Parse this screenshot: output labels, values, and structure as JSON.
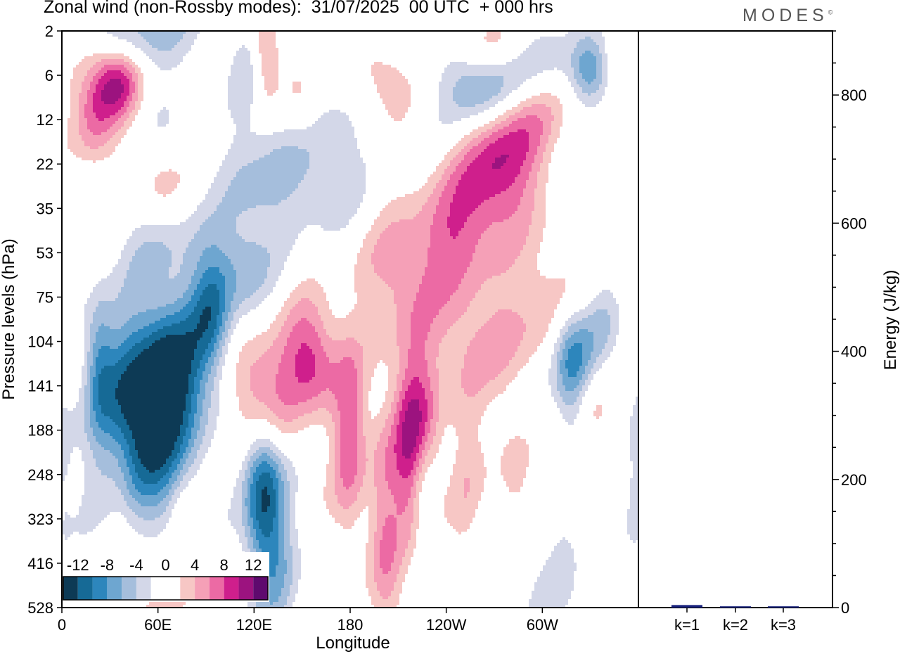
{
  "title": "Zonal wind (non-Rossby modes):  31/07/2025  00 UTC  + 000 hrs",
  "brand": {
    "name": "MODES",
    "mark": "©"
  },
  "colors": {
    "neg": [
      "#0d3a55",
      "#166a96",
      "#2d86bc",
      "#6ea6d0",
      "#a5bedc",
      "#d3d7e8"
    ],
    "pos": [
      "#f7c7c5",
      "#f5a0b7",
      "#ec6aa4",
      "#cf1f8c",
      "#9c137f",
      "#5f0a6e"
    ],
    "zero": "#ffffff",
    "energy_bar": "#1a237e"
  },
  "chart_data": [
    {
      "type": "heatmap",
      "title": "Zonal wind (non-Rossby modes)",
      "xlabel": "Longitude",
      "ylabel": "Pressure levels (hPa)",
      "x_ticks": [
        "0",
        "60E",
        "120E",
        "180",
        "120W",
        "60W"
      ],
      "x_tick_values": [
        0,
        60,
        120,
        180,
        240,
        300
      ],
      "xlim": [
        0,
        360
      ],
      "y_levels": [
        "2",
        "6",
        "12",
        "22",
        "35",
        "53",
        "75",
        "104",
        "141",
        "188",
        "248",
        "323",
        "416",
        "528"
      ],
      "colorbar": {
        "labels": [
          "-12",
          "-8",
          "-4",
          "0",
          "4",
          "8",
          "12"
        ],
        "levels": [
          -14,
          -12,
          -10,
          -8,
          -6,
          -4,
          -2,
          2,
          4,
          6,
          8,
          10,
          12,
          14
        ]
      },
      "features": [
        {
          "lon": 50,
          "level": 8.7,
          "value": -15,
          "width": 20,
          "depth": 1.6
        },
        {
          "lon": 72,
          "level": 7.6,
          "value": -8,
          "width": 14,
          "depth": 1.2
        },
        {
          "lon": 93,
          "level": 6.4,
          "value": -8,
          "width": 9,
          "depth": 1.0
        },
        {
          "lon": 110,
          "level": 5.4,
          "value": -5,
          "width": 14,
          "depth": 0.8
        },
        {
          "lon": 23,
          "level": 7.4,
          "value": -5,
          "width": 6,
          "depth": 1.0
        },
        {
          "lon": 0,
          "level": 9.8,
          "value": -3,
          "width": 5,
          "depth": 1.2
        },
        {
          "lon": 126,
          "level": 10.2,
          "value": -13,
          "width": 9,
          "depth": 1.6
        },
        {
          "lon": 137,
          "level": 12.3,
          "value": -3,
          "width": 9,
          "depth": 1.4
        },
        {
          "lon": 320,
          "level": 7.4,
          "value": -11,
          "width": 10,
          "depth": 1.0
        },
        {
          "lon": 338,
          "level": 6.4,
          "value": -4,
          "width": 8,
          "depth": 0.8
        },
        {
          "lon": 225,
          "level": 10.3,
          "value": -6,
          "width": 6,
          "depth": 1.0
        },
        {
          "lon": 160,
          "level": 2.9,
          "value": -5,
          "width": 20,
          "depth": 1.1
        },
        {
          "lon": 120,
          "level": 3.5,
          "value": -4,
          "width": 16,
          "depth": 1.0
        },
        {
          "lon": 265,
          "level": 1.3,
          "value": -10,
          "width": 18,
          "depth": 0.8
        },
        {
          "lon": 300,
          "level": 0.8,
          "value": -7,
          "width": 16,
          "depth": 0.7
        },
        {
          "lon": 330,
          "level": 0.9,
          "value": -7,
          "width": 8,
          "depth": 0.5
        },
        {
          "lon": 48,
          "level": 1.6,
          "value": -4,
          "width": 14,
          "depth": 0.7
        },
        {
          "lon": 50,
          "level": 0.0,
          "value": -5,
          "width": 26,
          "depth": 0.6
        },
        {
          "lon": 120,
          "level": 1.0,
          "value": -3,
          "width": 10,
          "depth": 0.8
        },
        {
          "lon": 300,
          "level": 13.0,
          "value": -2,
          "width": 10,
          "depth": 1.5
        },
        {
          "lon": 315,
          "level": 12.3,
          "value": -2,
          "width": 6,
          "depth": 1.0
        },
        {
          "lon": 63,
          "level": 4.8,
          "value": -3,
          "width": 18,
          "depth": 0.7
        },
        {
          "lon": 125,
          "level": 8.3,
          "value": 11,
          "width": 12,
          "depth": 1.0
        },
        {
          "lon": 155,
          "level": 7.4,
          "value": 9,
          "width": 12,
          "depth": 0.9
        },
        {
          "lon": 180,
          "level": 9.2,
          "value": 7,
          "width": 8,
          "depth": 1.6
        },
        {
          "lon": 220,
          "level": 9.3,
          "value": 12,
          "width": 10,
          "depth": 1.5
        },
        {
          "lon": 200,
          "level": 10.5,
          "value": 4,
          "width": 6,
          "depth": 1.5
        },
        {
          "lon": 205,
          "level": 12.5,
          "value": 3,
          "width": 8,
          "depth": 1.0
        },
        {
          "lon": 212,
          "level": 5.4,
          "value": 5,
          "width": 18,
          "depth": 1.0
        },
        {
          "lon": 245,
          "level": 4.6,
          "value": 6,
          "width": 16,
          "depth": 1.0
        },
        {
          "lon": 270,
          "level": 3.4,
          "value": 7,
          "width": 18,
          "depth": 1.0
        },
        {
          "lon": 278,
          "level": 2.2,
          "value": 7,
          "width": 16,
          "depth": 0.9
        },
        {
          "lon": 300,
          "level": 1.4,
          "value": 5,
          "width": 16,
          "depth": 0.8
        },
        {
          "lon": 262,
          "level": 7.0,
          "value": 4,
          "width": 25,
          "depth": 0.9
        },
        {
          "lon": 310,
          "level": 6.0,
          "value": 4,
          "width": 22,
          "depth": 0.9
        },
        {
          "lon": 330,
          "level": 8.4,
          "value": 5,
          "width": 8,
          "depth": 0.8
        },
        {
          "lon": 252,
          "level": 9.6,
          "value": 3,
          "width": 8,
          "depth": 1.6
        },
        {
          "lon": 282,
          "level": 10.0,
          "value": 3,
          "width": 8,
          "depth": 1.1
        },
        {
          "lon": 35,
          "level": 1.2,
          "value": 13,
          "width": 12,
          "depth": 0.6
        },
        {
          "lon": 20,
          "level": 2.0,
          "value": 6,
          "width": 10,
          "depth": 0.7
        },
        {
          "lon": 60,
          "level": 3.4,
          "value": 3,
          "width": 10,
          "depth": 0.7
        },
        {
          "lon": 127,
          "level": 0.6,
          "value": 6,
          "width": 6,
          "depth": 0.8
        },
        {
          "lon": 150,
          "level": 1.7,
          "value": 4,
          "width": 10,
          "depth": 0.8
        },
        {
          "lon": 200,
          "level": 1.1,
          "value": 4,
          "width": 12,
          "depth": 0.6
        },
        {
          "lon": 270,
          "level": 0.4,
          "value": 5,
          "width": 20,
          "depth": 0.5
        },
        {
          "lon": 35,
          "level": 10.1,
          "value": 3,
          "width": 8,
          "depth": 1.0
        },
        {
          "lon": 55,
          "level": 12.8,
          "value": 3,
          "width": 10,
          "depth": 1.2
        },
        {
          "lon": 75,
          "level": 11.5,
          "value": 2.5,
          "width": 6,
          "depth": 1.0
        }
      ]
    },
    {
      "type": "bar",
      "categories": [
        "k=1",
        "k=2",
        "k=3"
      ],
      "values": [
        4,
        2,
        2
      ],
      "ylabel": "Energy (J/kg)",
      "ylim": [
        0,
        900
      ],
      "y_ticks": [
        0,
        200,
        400,
        600,
        800
      ]
    }
  ]
}
